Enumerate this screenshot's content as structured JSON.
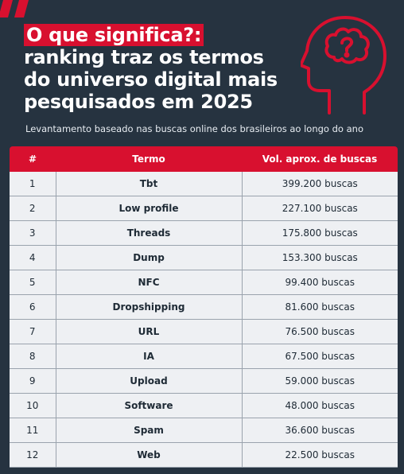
{
  "header": {
    "title_highlight": "O que significa?:",
    "title_lines": [
      "ranking traz os termos",
      "do universo digital mais",
      "pesquisados em 2025"
    ],
    "subtitle": "Levantamento baseado nas buscas online dos brasileiros ao longo do ano"
  },
  "icons": {
    "decoration": "slash-marks-icon",
    "illustration": "head-question-mark-icon"
  },
  "colors": {
    "background": "#263340",
    "accent": "#d8102f",
    "row_bg": "#eef0f3"
  },
  "chart_data": {
    "type": "table",
    "columns": [
      "#",
      "Termo",
      "Vol. aprox. de buscas"
    ],
    "rows": [
      [
        "1",
        "Tbt",
        "399.200 buscas"
      ],
      [
        "2",
        "Low profile",
        "227.100 buscas"
      ],
      [
        "3",
        "Threads",
        "175.800 buscas"
      ],
      [
        "4",
        "Dump",
        "153.300 buscas"
      ],
      [
        "5",
        "NFC",
        "99.400 buscas"
      ],
      [
        "6",
        "Dropshipping",
        "81.600 buscas"
      ],
      [
        "7",
        "URL",
        "76.500 buscas"
      ],
      [
        "8",
        "IA",
        "67.500 buscas"
      ],
      [
        "9",
        "Upload",
        "59.000 buscas"
      ],
      [
        "10",
        "Software",
        "48.000 buscas"
      ],
      [
        "11",
        "Spam",
        "36.600 buscas"
      ],
      [
        "12",
        "Web",
        "22.500 buscas"
      ]
    ]
  }
}
